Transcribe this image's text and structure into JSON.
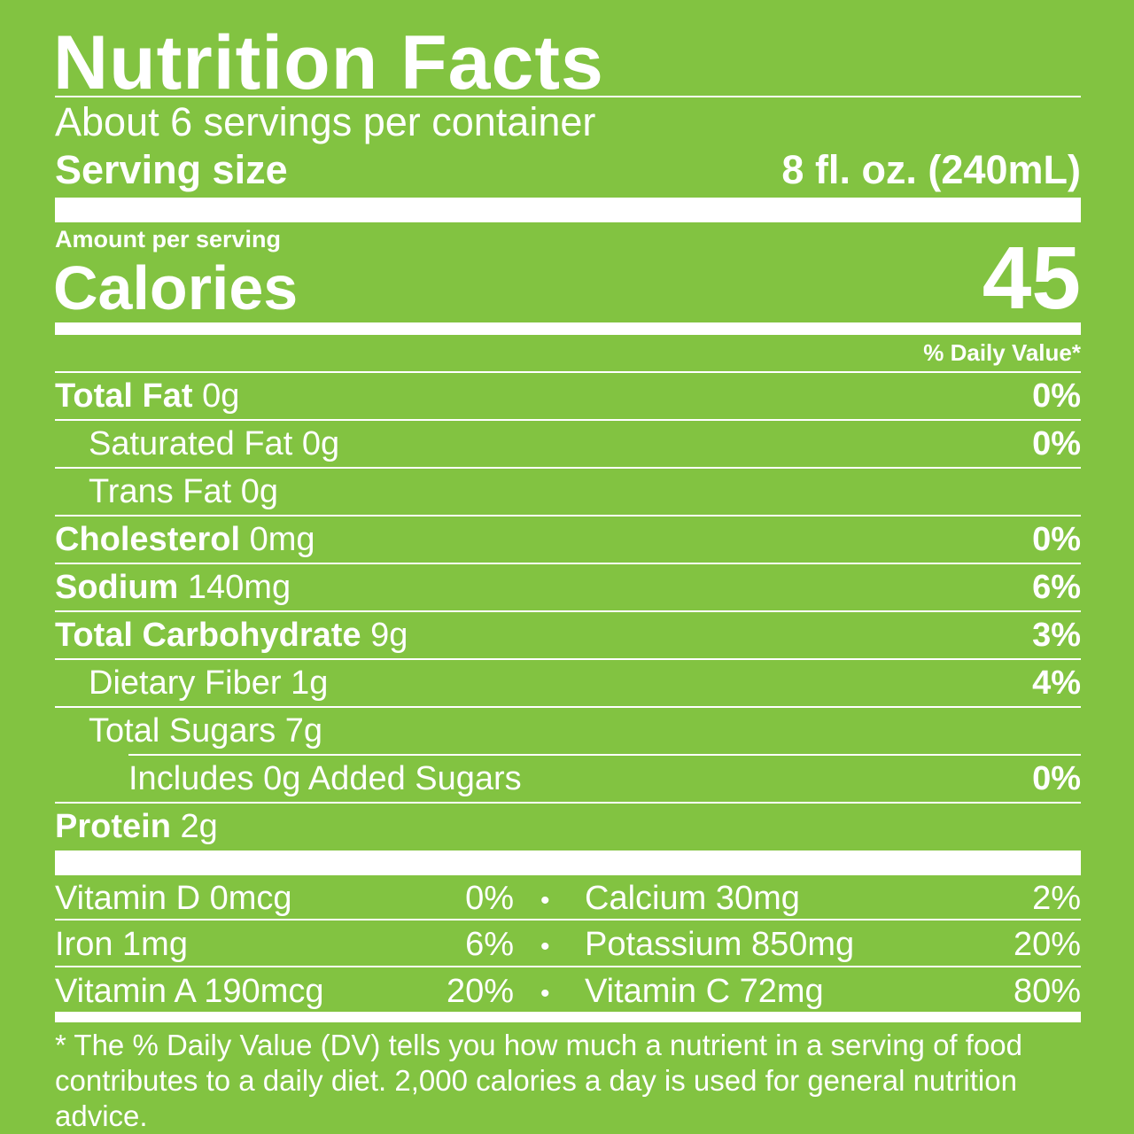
{
  "label": {
    "title": "Nutrition Facts",
    "servings_per_container": "About 6 servings per container",
    "serving_size_label": "Serving size",
    "serving_size_value": "8 fl. oz. (240mL)",
    "amount_per_serving": "Amount per serving",
    "calories_label": "Calories",
    "calories_value": "45",
    "dv_header": "% Daily Value*",
    "nutrients": [
      {
        "name": "Total Fat",
        "amount": "0g",
        "dv": "0%"
      },
      {
        "name": "Saturated Fat",
        "amount": "0g",
        "dv": "0%"
      },
      {
        "name": "Trans Fat",
        "amount": "0g",
        "dv": ""
      },
      {
        "name": "Cholesterol",
        "amount": "0mg",
        "dv": "0%"
      },
      {
        "name": "Sodium",
        "amount": "140mg",
        "dv": "6%"
      },
      {
        "name": "Total Carbohydrate",
        "amount": "9g",
        "dv": "3%"
      },
      {
        "name": "Dietary Fiber",
        "amount": "1g",
        "dv": "4%"
      },
      {
        "name": "Total Sugars",
        "amount": "7g",
        "dv": ""
      },
      {
        "name": "Includes",
        "amount": "0g Added Sugars",
        "dv": "0%"
      },
      {
        "name": "Protein",
        "amount": "2g",
        "dv": ""
      }
    ],
    "vitamins": [
      {
        "left_name": "Vitamin D 0mcg",
        "left_dv": "0%",
        "right_name": "Calcium 30mg",
        "right_dv": "2%"
      },
      {
        "left_name": "Iron 1mg",
        "left_dv": "6%",
        "right_name": "Potassium 850mg",
        "right_dv": "20%"
      },
      {
        "left_name": "Vitamin A 190mcg",
        "left_dv": "20%",
        "right_name": "Vitamin C 72mg",
        "right_dv": "80%"
      }
    ],
    "separator": "•",
    "footnote": "* The % Daily Value (DV) tells you how much a nutrient in a serving of food contributes to a daily diet. 2,000 calories a day is used for general nutrition advice."
  }
}
